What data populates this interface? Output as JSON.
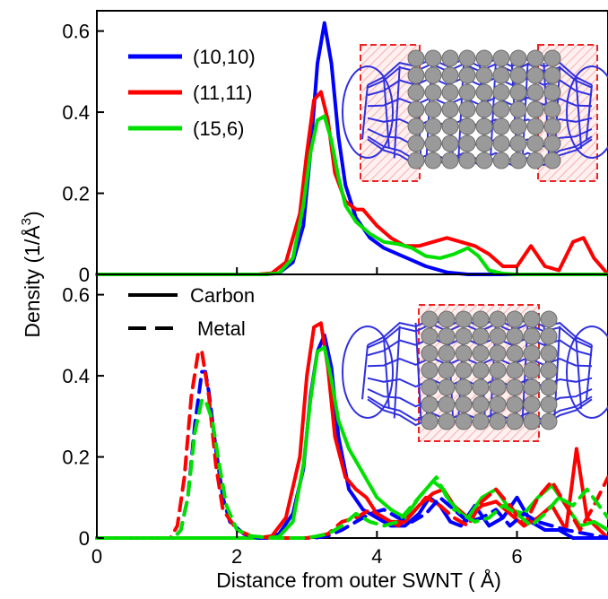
{
  "chart_data": {
    "type": "line",
    "xlabel": "Distance from outer SWNT ( Å)",
    "ylabel": "Density (1/Å",
    "ylabel_sup": "3",
    "ylabel_close": ")",
    "xlim": [
      0,
      7.3
    ],
    "x_ticks": [
      0,
      2,
      4,
      6
    ],
    "x_tick_labels": [
      "0",
      "2",
      "4",
      "6"
    ],
    "colors": {
      "(10,10)": "#0000ff",
      "(11,11)": "#ff0000",
      "(15,6)": "#00e000",
      "cnt": "#3030e0",
      "atom": "#9a9a9a",
      "box": "#ee2222"
    },
    "panels": [
      {
        "id": "top",
        "ylim": [
          0,
          0.65
        ],
        "y_ticks": [
          0,
          0.2,
          0.4,
          0.6
        ],
        "y_tick_labels": [
          "0",
          "0.2",
          "0.4",
          "0.6"
        ],
        "legend": {
          "placement": "top-left",
          "entries": [
            "(10,10)",
            "(11,11)",
            "(15,6)"
          ]
        },
        "series": [
          {
            "name": "(10,10)",
            "color": "#0000ff",
            "style": "solid",
            "x": [
              0,
              2.4,
              2.6,
              2.8,
              2.95,
              3.05,
              3.15,
              3.25,
              3.35,
              3.45,
              3.55,
              3.7,
              3.9,
              4.1,
              4.3,
              4.5,
              4.7,
              5.0,
              5.3,
              5.8,
              6.5,
              7.3
            ],
            "y": [
              0,
              0,
              0.003,
              0.03,
              0.12,
              0.3,
              0.52,
              0.62,
              0.52,
              0.34,
              0.22,
              0.14,
              0.09,
              0.065,
              0.05,
              0.035,
              0.02,
              0.005,
              0,
              0,
              0,
              0
            ]
          },
          {
            "name": "(11,11)",
            "color": "#ff0000",
            "style": "solid",
            "x": [
              0,
              2.3,
              2.5,
              2.7,
              2.9,
              3.0,
              3.1,
              3.2,
              3.3,
              3.4,
              3.55,
              3.7,
              3.8,
              3.9,
              4.0,
              4.2,
              4.4,
              4.6,
              4.8,
              5.0,
              5.2,
              5.4,
              5.6,
              5.8,
              6.0,
              6.2,
              6.4,
              6.6,
              6.8,
              6.95,
              7.1,
              7.3
            ],
            "y": [
              0,
              0,
              0.003,
              0.03,
              0.15,
              0.3,
              0.43,
              0.45,
              0.38,
              0.25,
              0.18,
              0.16,
              0.16,
              0.14,
              0.12,
              0.09,
              0.07,
              0.07,
              0.08,
              0.09,
              0.08,
              0.07,
              0.05,
              0.02,
              0.02,
              0.07,
              0.02,
              0.01,
              0.08,
              0.09,
              0.04,
              0
            ]
          },
          {
            "name": "(15,6)",
            "color": "#00e000",
            "style": "solid",
            "x": [
              0,
              2.4,
              2.6,
              2.8,
              2.95,
              3.05,
              3.15,
              3.25,
              3.35,
              3.45,
              3.55,
              3.7,
              3.9,
              4.1,
              4.3,
              4.5,
              4.7,
              4.9,
              5.1,
              5.3,
              5.45,
              5.6,
              5.8,
              6.0,
              6.3,
              7.3
            ],
            "y": [
              0,
              0,
              0.003,
              0.04,
              0.17,
              0.3,
              0.38,
              0.39,
              0.33,
              0.24,
              0.17,
              0.13,
              0.1,
              0.08,
              0.075,
              0.065,
              0.045,
              0.04,
              0.05,
              0.065,
              0.045,
              0.01,
              0.002,
              0,
              0,
              0
            ]
          }
        ]
      },
      {
        "id": "bottom",
        "ylim": [
          0,
          0.65
        ],
        "y_ticks": [
          0,
          0.2,
          0.4,
          0.6
        ],
        "y_tick_labels": [
          "0",
          "0.2",
          "0.4",
          "0.6"
        ],
        "legend": {
          "placement": "top-left",
          "entries": [
            "Carbon",
            "Metal"
          ]
        },
        "series": [
          {
            "name": "Carbon",
            "color": "#0000ff",
            "style": "solid",
            "x": [
              0,
              2.4,
              2.6,
              2.8,
              2.95,
              3.05,
              3.15,
              3.25,
              3.35,
              3.45,
              3.6,
              3.8,
              4.0,
              4.2,
              4.4,
              4.6,
              4.75,
              4.9,
              5.05,
              5.2,
              5.4,
              5.6,
              5.8,
              6.0,
              6.2,
              6.4,
              6.6,
              6.8,
              7.0,
              7.3
            ],
            "y": [
              0,
              0,
              0.01,
              0.06,
              0.17,
              0.35,
              0.46,
              0.5,
              0.42,
              0.25,
              0.12,
              0.07,
              0.05,
              0.03,
              0.03,
              0.06,
              0.1,
              0.08,
              0.04,
              0.03,
              0.08,
              0.03,
              0.05,
              0.1,
              0.04,
              0.02,
              0.02,
              0,
              0,
              0
            ]
          },
          {
            "name": "(11,11) carbon",
            "color": "#ff0000",
            "style": "solid",
            "x": [
              0,
              2.3,
              2.5,
              2.7,
              2.9,
              3.0,
              3.1,
              3.2,
              3.3,
              3.4,
              3.55,
              3.7,
              3.85,
              4.0,
              4.2,
              4.4,
              4.6,
              4.8,
              4.95,
              5.1,
              5.3,
              5.5,
              5.7,
              5.9,
              6.1,
              6.3,
              6.5,
              6.7,
              6.85,
              7.0,
              7.3
            ],
            "y": [
              0,
              0,
              0.005,
              0.05,
              0.2,
              0.4,
              0.52,
              0.53,
              0.42,
              0.25,
              0.15,
              0.12,
              0.1,
              0.06,
              0.04,
              0.04,
              0.08,
              0.11,
              0.12,
              0.08,
              0.05,
              0.08,
              0.09,
              0.06,
              0.03,
              0.05,
              0.08,
              0.02,
              0.22,
              0.05,
              0
            ]
          },
          {
            "name": "(15,6) carbon",
            "color": "#00e000",
            "style": "solid",
            "x": [
              0,
              2.4,
              2.6,
              2.8,
              2.95,
              3.05,
              3.15,
              3.25,
              3.35,
              3.45,
              3.6,
              3.8,
              4.0,
              4.2,
              4.4,
              4.6,
              4.8,
              4.95,
              5.1,
              5.3,
              5.5,
              5.7,
              5.9,
              6.1,
              6.3,
              6.5,
              6.7,
              6.9,
              7.1,
              7.3
            ],
            "y": [
              0,
              0,
              0.003,
              0.04,
              0.18,
              0.34,
              0.46,
              0.47,
              0.39,
              0.29,
              0.22,
              0.16,
              0.1,
              0.07,
              0.05,
              0.1,
              0.14,
              0.12,
              0.07,
              0.05,
              0.1,
              0.12,
              0.07,
              0.06,
              0.1,
              0.13,
              0.08,
              0.03,
              0.04,
              0.02
            ]
          },
          {
            "name": "Metal",
            "color": "#0000ff",
            "style": "dashed",
            "x": [
              0,
              1.1,
              1.2,
              1.3,
              1.4,
              1.5,
              1.55,
              1.6,
              1.7,
              1.8,
              1.9,
              2.1,
              2.3,
              2.5,
              2.7,
              2.9,
              3.1,
              3.3,
              3.5,
              3.7,
              3.9,
              4.1,
              4.3,
              4.5,
              4.7,
              4.9,
              5.1,
              5.3,
              5.5,
              5.7,
              5.9,
              6.1,
              6.3,
              6.5,
              6.7,
              7.0,
              7.3
            ],
            "y": [
              0,
              0,
              0.02,
              0.1,
              0.28,
              0.41,
              0.41,
              0.36,
              0.22,
              0.1,
              0.04,
              0.01,
              0,
              0,
              0,
              0,
              0,
              0.005,
              0.02,
              0.04,
              0.06,
              0.07,
              0.05,
              0.04,
              0.06,
              0.1,
              0.07,
              0.04,
              0.05,
              0.07,
              0.03,
              0.06,
              0.04,
              0.03,
              0.02,
              0.01,
              0
            ]
          },
          {
            "name": "(11,11) metal",
            "color": "#ff0000",
            "style": "dashed",
            "x": [
              0,
              1.05,
              1.15,
              1.25,
              1.35,
              1.45,
              1.5,
              1.6,
              1.7,
              1.8,
              2.0,
              2.2,
              2.5,
              3.0,
              3.3,
              3.5,
              3.7,
              3.9,
              4.1,
              4.3,
              4.5,
              4.7,
              4.9,
              5.1,
              5.3,
              5.5,
              5.7,
              5.9,
              6.1,
              6.3,
              6.5,
              6.7,
              6.9,
              7.1,
              7.3
            ],
            "y": [
              0,
              0,
              0.03,
              0.15,
              0.35,
              0.46,
              0.46,
              0.35,
              0.18,
              0.07,
              0.02,
              0.005,
              0,
              0,
              0.01,
              0.04,
              0.05,
              0.07,
              0.05,
              0.03,
              0.06,
              0.1,
              0.08,
              0.05,
              0.03,
              0.09,
              0.12,
              0.08,
              0.03,
              0.1,
              0.14,
              0.08,
              0.02,
              0.08,
              0.15
            ]
          },
          {
            "name": "(15,6) metal",
            "color": "#00e000",
            "style": "dashed",
            "x": [
              0,
              1.1,
              1.2,
              1.3,
              1.4,
              1.5,
              1.55,
              1.65,
              1.75,
              1.85,
              2.0,
              2.2,
              2.5,
              3.0,
              3.3,
              3.5,
              3.7,
              3.9,
              4.1,
              4.3,
              4.5,
              4.7,
              4.85,
              5.0,
              5.2,
              5.4,
              5.6,
              5.8,
              6.0,
              6.2,
              6.4,
              6.6,
              6.8,
              7.0,
              7.3
            ],
            "y": [
              0,
              0,
              0.02,
              0.1,
              0.26,
              0.34,
              0.34,
              0.29,
              0.18,
              0.08,
              0.02,
              0.005,
              0,
              0,
              0.01,
              0.03,
              0.06,
              0.04,
              0.03,
              0.04,
              0.08,
              0.12,
              0.15,
              0.1,
              0.06,
              0.04,
              0.05,
              0.08,
              0.06,
              0.03,
              0.06,
              0.1,
              0.08,
              0.12,
              0.05
            ]
          }
        ]
      }
    ]
  }
}
